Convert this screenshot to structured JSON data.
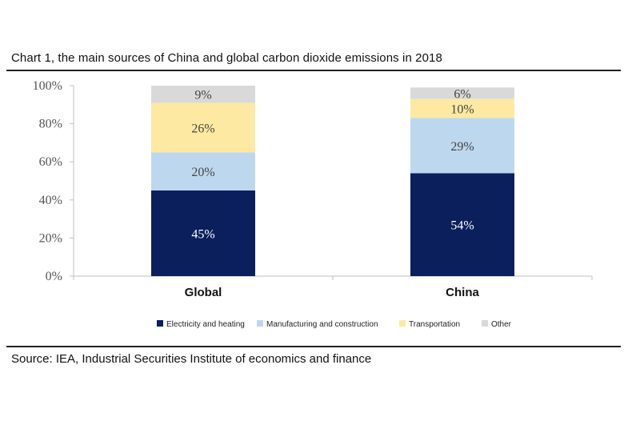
{
  "header": {
    "title": "Chart 1, the main sources of China and global carbon dioxide emissions in 2018"
  },
  "footer": {
    "source": "Source: IEA, Industrial Securities Institute of economics and finance"
  },
  "chart_data": {
    "type": "bar",
    "stacked": true,
    "title": "Chart 1, the main sources of China and global carbon dioxide emissions in 2018",
    "xlabel": "",
    "ylabel": "",
    "ylim": [
      0,
      100
    ],
    "yticks": [
      "0%",
      "20%",
      "40%",
      "60%",
      "80%",
      "100%"
    ],
    "categories": [
      "Global",
      "China"
    ],
    "series": [
      {
        "name": "Electricity and heating",
        "values": [
          45,
          54
        ],
        "labels": [
          "45%",
          "54%"
        ],
        "color": "#0b1f5c",
        "label_color": "#ffffff"
      },
      {
        "name": "Manufacturing and construction",
        "values": [
          20,
          29
        ],
        "labels": [
          "20%",
          "29%"
        ],
        "color": "#bdd7ee",
        "label_color": "#444444"
      },
      {
        "name": "Transportation",
        "values": [
          26,
          10
        ],
        "labels": [
          "26%",
          "10%"
        ],
        "color": "#fde9a2",
        "label_color": "#444444"
      },
      {
        "name": "Other",
        "values": [
          9,
          6
        ],
        "labels": [
          "9%",
          "6%"
        ],
        "color": "#d9d9d9",
        "label_color": "#444444"
      }
    ],
    "grid": false,
    "legend_position": "bottom"
  }
}
